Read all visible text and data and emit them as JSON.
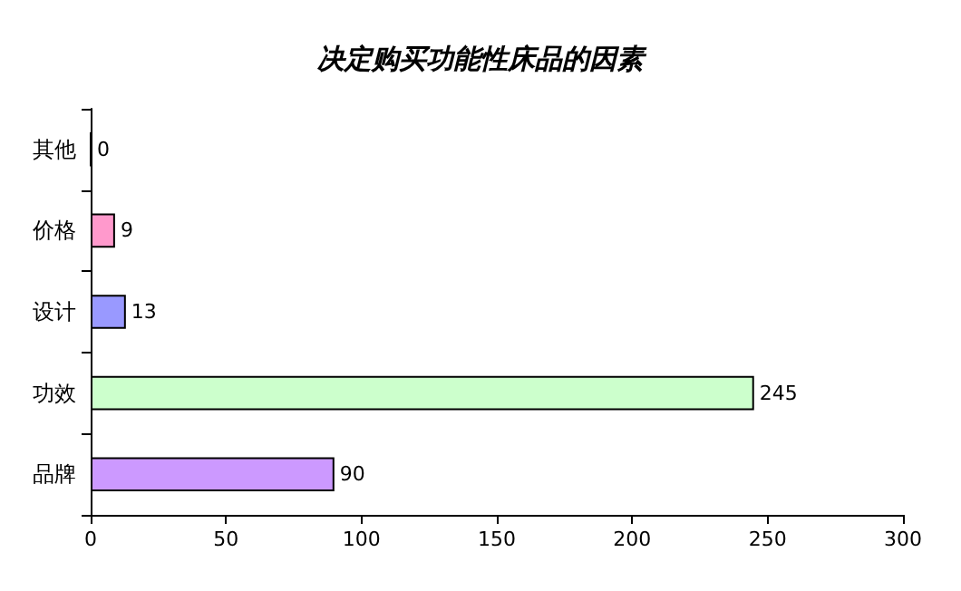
{
  "chart_data": {
    "type": "bar",
    "orientation": "horizontal",
    "title": "决定购买功能性床品的因素",
    "categories": [
      "其他",
      "价格",
      "设计",
      "功效",
      "品牌"
    ],
    "values": [
      0,
      9,
      13,
      245,
      90
    ],
    "colors": [
      "#ffffff",
      "#ff99cc",
      "#9999ff",
      "#ccffcc",
      "#cc99ff"
    ],
    "xlim": [
      0,
      300
    ],
    "xticks": [
      0,
      50,
      100,
      150,
      200,
      250,
      300
    ],
    "data_labels": true
  }
}
